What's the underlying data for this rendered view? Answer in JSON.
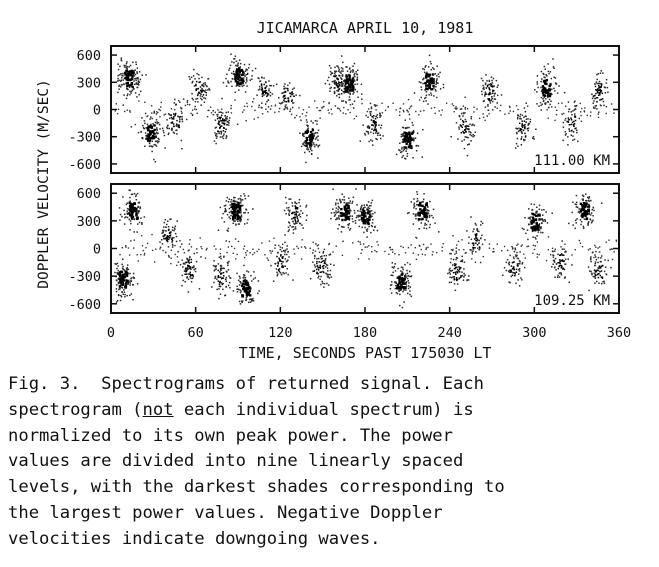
{
  "chart_data": {
    "type": "heatmap",
    "title": "JICAMARCA  APRIL 10, 1981",
    "xlabel": "TIME, SECONDS PAST 175030 LT",
    "ylabel": "DOPPLER VELOCITY (M/SEC)",
    "xlim": [
      0,
      360
    ],
    "x_ticks": [
      "0",
      "60",
      "120",
      "180",
      "240",
      "300",
      "360"
    ],
    "panels": [
      {
        "label": "111.00 KM",
        "ylim": [
          -700,
          700
        ],
        "y_ticks": [
          "600",
          "300",
          "0",
          "-300",
          "-600"
        ],
        "blobs": [
          {
            "t": 12,
            "v": 350,
            "s": 2.0
          },
          {
            "t": 28,
            "v": -250,
            "s": 1.6
          },
          {
            "t": 45,
            "v": -120,
            "s": 1.0
          },
          {
            "t": 62,
            "v": 250,
            "s": 1.1
          },
          {
            "t": 78,
            "v": -150,
            "s": 1.2
          },
          {
            "t": 90,
            "v": 380,
            "s": 1.6
          },
          {
            "t": 108,
            "v": 200,
            "s": 0.9
          },
          {
            "t": 125,
            "v": 150,
            "s": 0.8
          },
          {
            "t": 140,
            "v": -300,
            "s": 1.3
          },
          {
            "t": 160,
            "v": 300,
            "s": 1.0
          },
          {
            "t": 168,
            "v": 300,
            "s": 1.9
          },
          {
            "t": 185,
            "v": -150,
            "s": 1.1
          },
          {
            "t": 210,
            "v": -320,
            "s": 1.5
          },
          {
            "t": 225,
            "v": 320,
            "s": 1.4
          },
          {
            "t": 250,
            "v": -200,
            "s": 1.0
          },
          {
            "t": 268,
            "v": 200,
            "s": 1.1
          },
          {
            "t": 292,
            "v": -200,
            "s": 1.0
          },
          {
            "t": 308,
            "v": 250,
            "s": 1.3
          },
          {
            "t": 326,
            "v": -150,
            "s": 0.8
          },
          {
            "t": 345,
            "v": 200,
            "s": 1.0
          }
        ]
      },
      {
        "label": "109.25 KM",
        "ylim": [
          -700,
          700
        ],
        "y_ticks": [
          "600",
          "300",
          "0",
          "-300",
          "-600"
        ],
        "blobs": [
          {
            "t": 8,
            "v": -320,
            "s": 1.9
          },
          {
            "t": 15,
            "v": 420,
            "s": 1.4
          },
          {
            "t": 40,
            "v": 150,
            "s": 1.0
          },
          {
            "t": 55,
            "v": -200,
            "s": 1.0
          },
          {
            "t": 78,
            "v": -300,
            "s": 1.1
          },
          {
            "t": 88,
            "v": 420,
            "s": 1.9
          },
          {
            "t": 95,
            "v": -420,
            "s": 1.3
          },
          {
            "t": 120,
            "v": -150,
            "s": 1.0
          },
          {
            "t": 130,
            "v": 380,
            "s": 1.2
          },
          {
            "t": 148,
            "v": -200,
            "s": 1.2
          },
          {
            "t": 165,
            "v": 400,
            "s": 1.5
          },
          {
            "t": 180,
            "v": 350,
            "s": 1.3
          },
          {
            "t": 205,
            "v": -350,
            "s": 1.5
          },
          {
            "t": 220,
            "v": 420,
            "s": 1.5
          },
          {
            "t": 245,
            "v": -250,
            "s": 1.1
          },
          {
            "t": 258,
            "v": 100,
            "s": 0.8
          },
          {
            "t": 285,
            "v": -200,
            "s": 1.0
          },
          {
            "t": 300,
            "v": 300,
            "s": 1.4
          },
          {
            "t": 318,
            "v": -150,
            "s": 0.9
          },
          {
            "t": 335,
            "v": 420,
            "s": 1.5
          },
          {
            "t": 345,
            "v": -250,
            "s": 1.0
          }
        ]
      }
    ],
    "grid": false
  },
  "caption": {
    "line1": "Fig. 3.  Spectrograms of returned signal. Each",
    "line2a": "spectrogram (",
    "line2u": "not",
    "line2b": " each individual spectrum) is",
    "line3": "normalized to its own peak power. The power",
    "line4": "values are divided into nine linearly spaced",
    "line5": "levels, with the darkest shades corresponding to",
    "line6": "the largest power values. Negative Doppler",
    "line7": "velocities indicate downgoing waves."
  }
}
